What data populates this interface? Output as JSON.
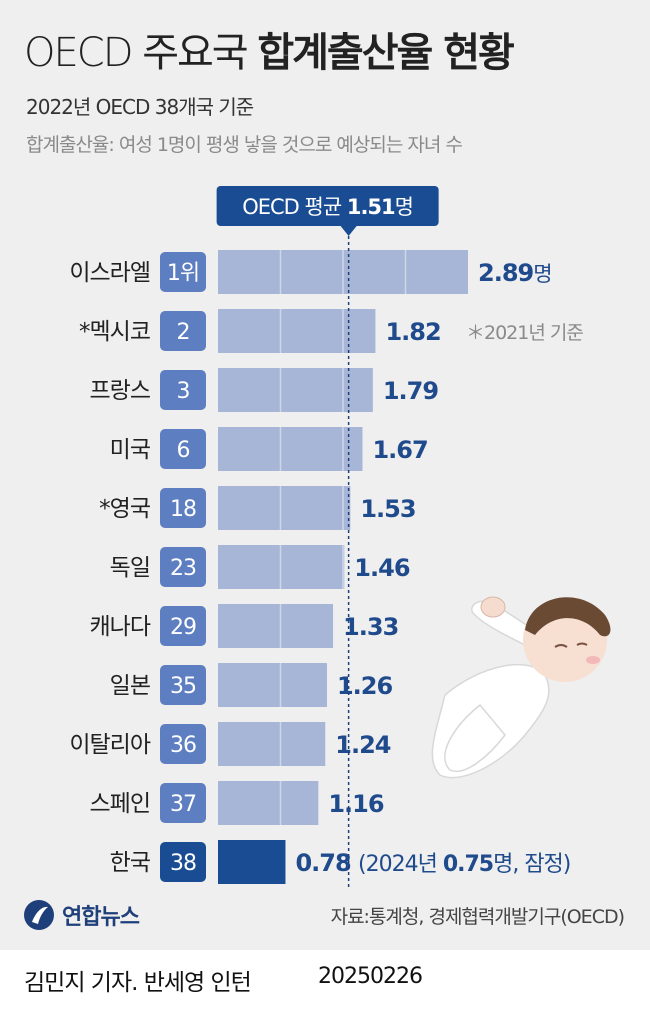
{
  "header": {
    "title_light": "OECD 주요국",
    "title_bold": "합계출산율 현황",
    "subtitle": "2022년 OECD 38개국 기준",
    "definition": "합계출산율: 여성 1명이 평생 낳을 것으로 예상되는 자녀 수"
  },
  "chart_data": {
    "type": "bar",
    "orientation": "horizontal",
    "categories": [
      "이스라엘",
      "*멕시코",
      "프랑스",
      "미국",
      "*영국",
      "독일",
      "캐나다",
      "일본",
      "이탈리아",
      "스페인",
      "한국"
    ],
    "ranks": [
      "1위",
      "2",
      "3",
      "6",
      "18",
      "23",
      "29",
      "35",
      "36",
      "37",
      "38"
    ],
    "values": [
      2.89,
      1.82,
      1.79,
      1.67,
      1.53,
      1.46,
      1.33,
      1.26,
      1.24,
      1.16,
      0.78
    ],
    "value_labels": [
      "2.89",
      "1.82",
      "1.79",
      "1.67",
      "1.53",
      "1.46",
      "1.33",
      "1.26",
      "1.24",
      "1.16",
      "0.78"
    ],
    "unit": "명",
    "reference_line": {
      "value": 1.51,
      "label_prefix": "OECD 평균",
      "label_value": "1.51",
      "label_unit": "명"
    },
    "notes": {
      "mexico": "＊2021년 기준",
      "korea_prefix": "(2024년",
      "korea_value": "0.75",
      "korea_suffix": "명, 잠정)"
    },
    "colors": {
      "bar": "#a7b6d6",
      "highlight": "#1a4c94",
      "rank_badge": "#5d7ec0",
      "rank_highlight": "#1a4c94",
      "value_text": "#1f4a8c"
    },
    "xlim": [
      0,
      2.89
    ]
  },
  "footer": {
    "logo_text": "연합뉴스",
    "source": "자료:통계청, 경제협력개발기구(OECD)",
    "author": "김민지 기자. 반세영 인턴",
    "date": "20250226"
  }
}
